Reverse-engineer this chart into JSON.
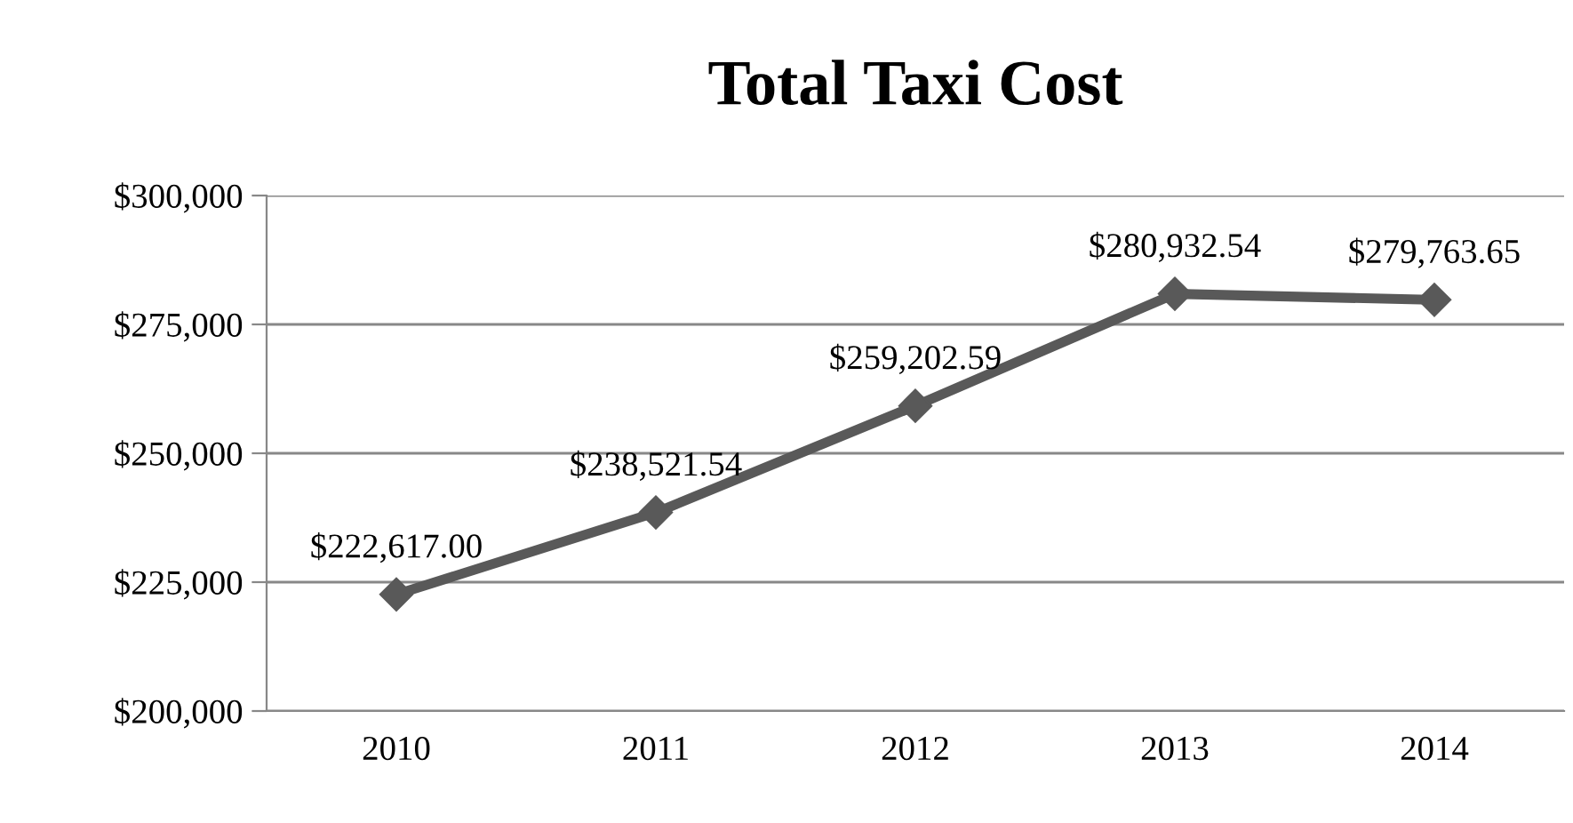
{
  "chart_data": {
    "type": "line",
    "title": "Total Taxi Cost",
    "categories": [
      "2010",
      "2011",
      "2012",
      "2013",
      "2014"
    ],
    "series": [
      {
        "color": "#595959",
        "values": [
          222617.0,
          238521.54,
          259202.59,
          280932.54,
          279763.65
        ],
        "value_labels": [
          "$222,617.00",
          "$238,521.54",
          "$259,202.59",
          "$280,932.54",
          "$279,763.65"
        ]
      }
    ],
    "ylim": [
      200000,
      300000
    ],
    "yticks": [
      {
        "value": 200000,
        "label": "$200,000"
      },
      {
        "value": 225000,
        "label": "$225,000"
      },
      {
        "value": 250000,
        "label": "$250,000"
      },
      {
        "value": 275000,
        "label": "$275,000"
      },
      {
        "value": 300000,
        "label": "$300,000"
      }
    ],
    "grid": "y",
    "marker": "diamond",
    "line_style": "solid",
    "legend": false
  }
}
